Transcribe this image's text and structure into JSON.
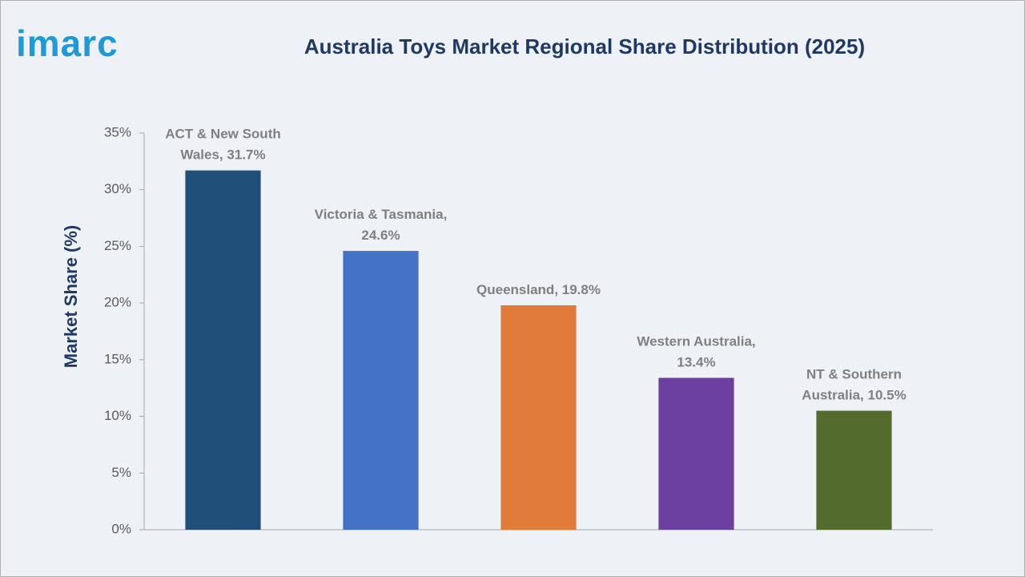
{
  "logo": "imarc",
  "chart_data": {
    "type": "bar",
    "title": "Australia Toys Market Regional Share Distribution (2025)",
    "y_label": "Market Share (%)",
    "categories": [
      "ACT & New South Wales",
      "Victoria & Tasmania",
      "Queensland",
      "Western Australia",
      "NT & Southern Australia"
    ],
    "values": [
      31.7,
      24.6,
      19.8,
      13.4,
      10.5
    ],
    "value_labels": [
      "ACT & New South Wales, 31.7%",
      "Victoria & Tasmania, 24.6%",
      "Queensland, 19.8%",
      "Western Australia, 13.4%",
      "NT & Southern Australia, 10.5%"
    ],
    "colors": [
      "#1f4e79",
      "#4472c4",
      "#e07b39",
      "#6b3fa0",
      "#546b2e"
    ],
    "ylim": [
      0,
      35
    ],
    "yticks": [
      {
        "value": 0,
        "label": "0%"
      },
      {
        "value": 5,
        "label": "5%"
      },
      {
        "value": 10,
        "label": "10%"
      },
      {
        "value": 15,
        "label": "15%"
      },
      {
        "value": 20,
        "label": "20%"
      },
      {
        "value": 25,
        "label": "25%"
      },
      {
        "value": 30,
        "label": "30%"
      },
      {
        "value": 35,
        "label": "35%"
      }
    ],
    "grid": false
  }
}
